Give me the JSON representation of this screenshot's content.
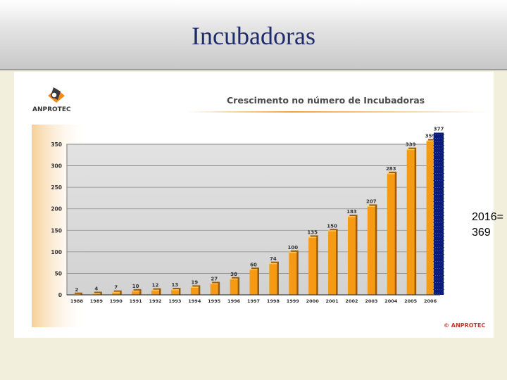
{
  "slide": {
    "title": "Incubadoras"
  },
  "note": {
    "line1": "2016=",
    "line2": "369"
  },
  "logo": {
    "text": "ANPROTEC"
  },
  "footer": {
    "copyright": "© ANPROTEC"
  },
  "colors": {
    "bar": "#f59a12",
    "bar_dark": "#9a5a06",
    "bar_top": "#ffc85a",
    "plot_bg": "#d9d9d9",
    "highlight": "#0b1b7a",
    "title_blue": "#1f2c6b"
  },
  "chart_data": {
    "type": "bar",
    "title": "Crescimento no número de Incubadoras",
    "categories": [
      "1988",
      "1989",
      "1990",
      "1991",
      "1992",
      "1993",
      "1994",
      "1995",
      "1996",
      "1997",
      "1998",
      "1999",
      "2000",
      "2001",
      "2002",
      "2003",
      "2004",
      "2005",
      "2006"
    ],
    "values": [
      2,
      4,
      7,
      10,
      12,
      13,
      19,
      27,
      38,
      60,
      74,
      100,
      135,
      150,
      183,
      207,
      283,
      339,
      359
    ],
    "value_labels": [
      "2",
      "4",
      "7",
      "10",
      "12",
      "13",
      "19",
      "27",
      "38",
      "60",
      "74",
      "100",
      "135",
      "150",
      "183",
      "207",
      "283",
      "339",
      "359"
    ],
    "highlight_value": 377,
    "highlight_label": "377",
    "ylim": [
      0,
      350
    ],
    "yticks": [
      0,
      50,
      100,
      150,
      200,
      250,
      300,
      350
    ],
    "ytick_labels": [
      "0",
      "50",
      "100",
      "150",
      "200",
      "250",
      "300",
      "350"
    ],
    "grid": true,
    "xlabel": "",
    "ylabel": ""
  }
}
